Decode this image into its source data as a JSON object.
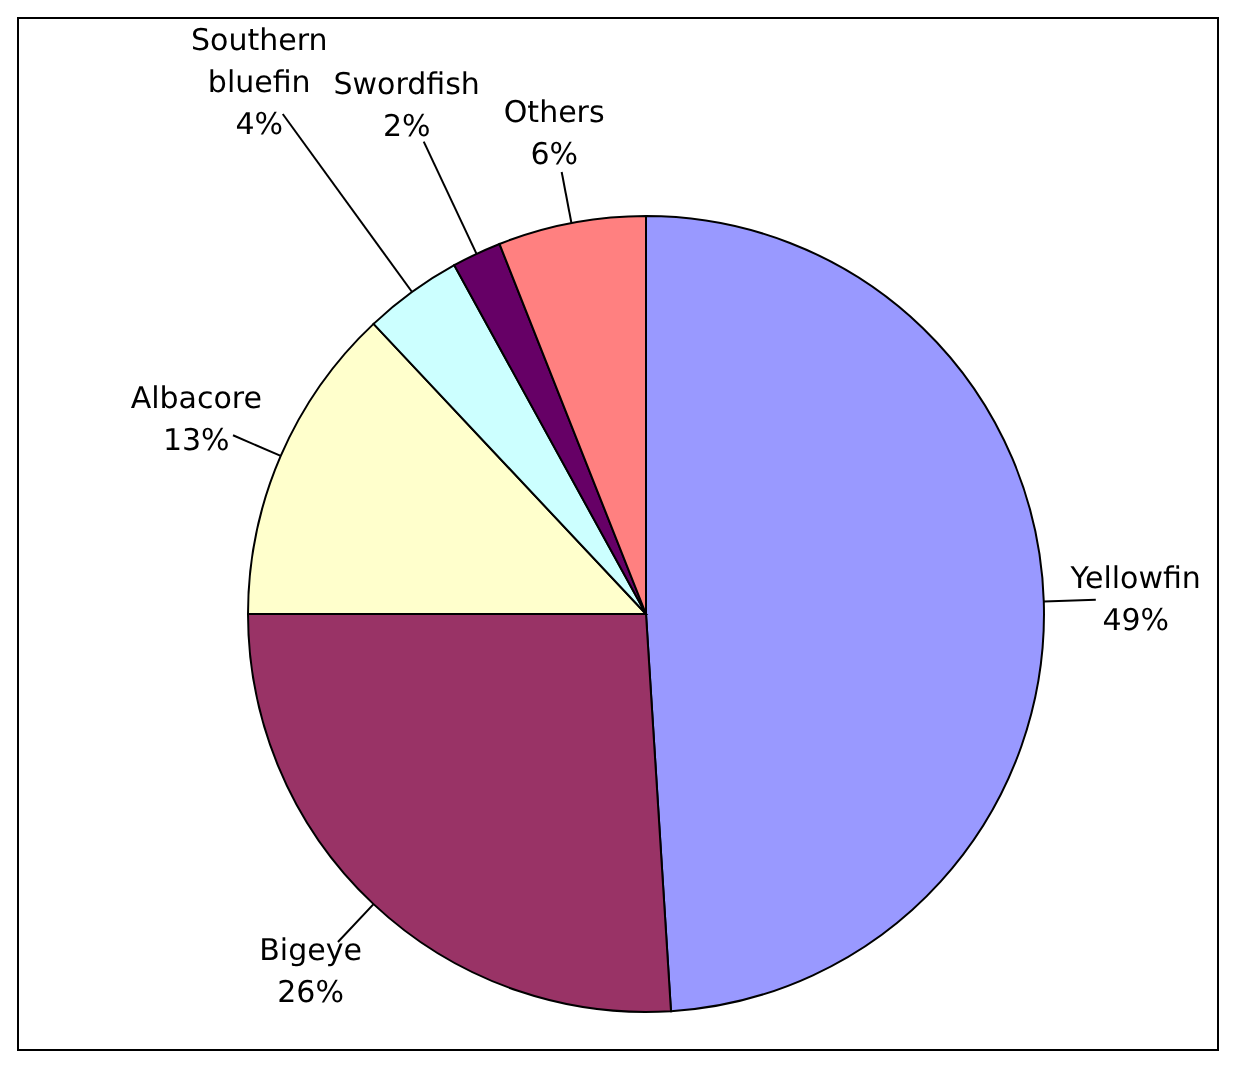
{
  "chart_data": {
    "type": "pie",
    "categories": [
      "Yellowfin",
      "Bigeye",
      "Albacore",
      "Southern bluefin",
      "Swordfish",
      "Others"
    ],
    "values": [
      49,
      26,
      13,
      4,
      2,
      6
    ],
    "colors": [
      "#9999ff",
      "#993366",
      "#ffffcc",
      "#ccffff",
      "#660066",
      "#ff8080"
    ],
    "value_labels": [
      "49%",
      "26%",
      "13%",
      "4%",
      "2%",
      "6%"
    ]
  }
}
